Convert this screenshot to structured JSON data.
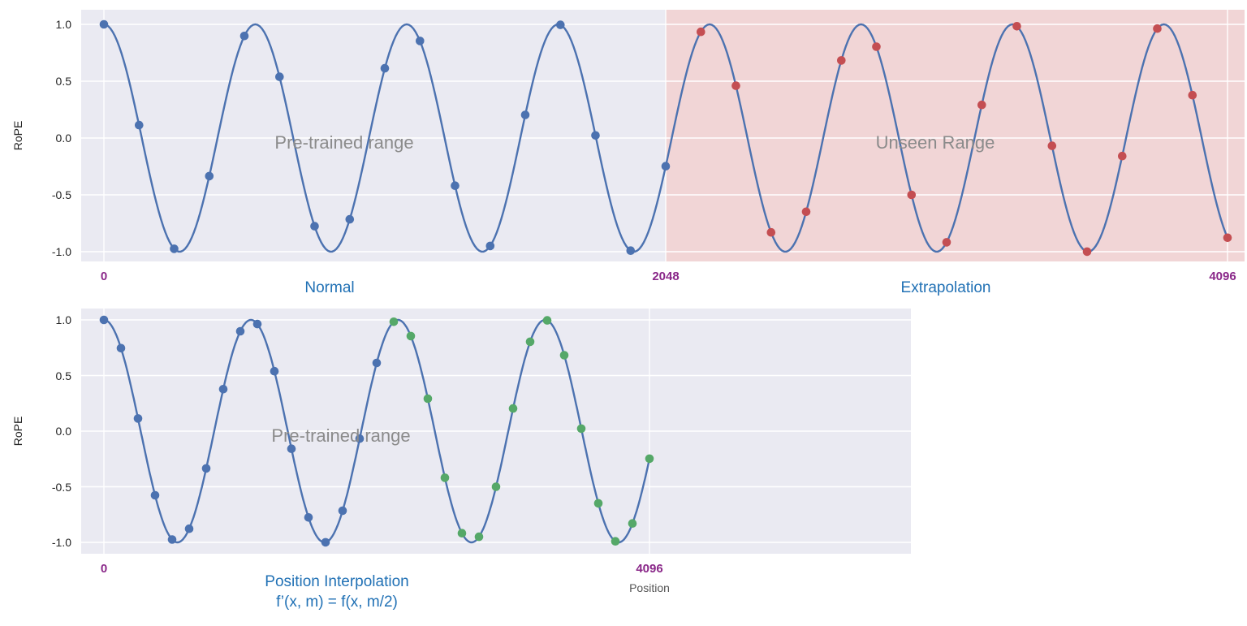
{
  "palette": {
    "line_blue": "#4c72b0",
    "dot_blue": "#4c72b0",
    "dot_red": "#c44e52",
    "dot_green": "#55a868",
    "bg_lavender": "#eaeaf2",
    "bg_pink": "#f1d5d6",
    "grid_white": "#ffffff",
    "tick_purple": "#8a2889",
    "caption_blue": "#2171b5",
    "annotation_gray": "#8b8b8b"
  },
  "chart_data": [
    {
      "id": "top-panel",
      "type": "line",
      "title": "",
      "ylabel": "RoPE",
      "xlabel": "",
      "ylim": [
        -1.15,
        1.15
      ],
      "x_range": [
        0,
        4096
      ],
      "yticks": [
        {
          "label": "1.0",
          "value": 1.0
        },
        {
          "label": "0.5",
          "value": 0.5
        },
        {
          "label": "0.0",
          "value": 0.0
        },
        {
          "label": "-0.5",
          "value": -0.5
        },
        {
          "label": "-1.0",
          "value": -1.0
        }
      ],
      "xticks": [
        {
          "label": "0",
          "value": 0
        },
        {
          "label": "2048",
          "value": 2048
        },
        {
          "label": "4096",
          "value": 4096
        }
      ],
      "curve": {
        "formula": "RoPE(x) = cos(2*pi*x/552)",
        "amplitude": 1,
        "period": 552,
        "phase": 0,
        "color": "line_blue"
      },
      "samples": {
        "step": 128,
        "groups": [
          {
            "name": "normal-samples",
            "from": 0,
            "to": 2048,
            "color": "dot_blue"
          },
          {
            "name": "extrapolation-samples",
            "from": 2176,
            "to": 4096,
            "color": "dot_red"
          }
        ]
      },
      "regions": [
        {
          "name": "pretrained-region",
          "label": "Pre-trained range",
          "from": 0,
          "to": 2048,
          "color": "bg_lavender"
        },
        {
          "name": "unseen-region",
          "label": "Unseen Range",
          "from": 2048,
          "to": 4096,
          "color": "bg_pink"
        }
      ],
      "captions": [
        {
          "text": "Normal",
          "at": 1024
        },
        {
          "text": "Extrapolation",
          "at": 3072
        }
      ]
    },
    {
      "id": "bottom-panel",
      "type": "line",
      "title": "",
      "ylabel": "RoPE",
      "xlabel": "Position",
      "ylim": [
        -1.15,
        1.15
      ],
      "x_range": [
        0,
        4096
      ],
      "yticks": [
        {
          "label": "1.0",
          "value": 1.0
        },
        {
          "label": "0.5",
          "value": 0.5
        },
        {
          "label": "0.0",
          "value": 0.0
        },
        {
          "label": "-0.5",
          "value": -0.5
        },
        {
          "label": "-1.0",
          "value": -1.0
        }
      ],
      "xticks": [
        {
          "label": "0",
          "value": 0
        },
        {
          "label": "4096",
          "value": 4096
        }
      ],
      "curve": {
        "formula": "RoPE'(x) = RoPE(x/2) = cos(2*pi*x/1104)",
        "amplitude": 1,
        "period": 1104,
        "phase": 0,
        "color": "line_blue"
      },
      "samples": {
        "step": 128,
        "groups": [
          {
            "name": "original-position-samples",
            "from": 0,
            "to": 2048,
            "color": "dot_blue"
          },
          {
            "name": "interpolated-position-samples",
            "from": 2176,
            "to": 4096,
            "color": "dot_green"
          }
        ]
      },
      "regions": [
        {
          "name": "pretrained-region",
          "label": "Pre-trained range",
          "from": 0,
          "to": 4096,
          "color": "bg_lavender"
        }
      ],
      "captions": [
        {
          "text": "Position Interpolation",
          "at": 1750
        },
        {
          "text": "f’(x, m) = f(x, m/2)",
          "at": 1750
        }
      ]
    }
  ]
}
